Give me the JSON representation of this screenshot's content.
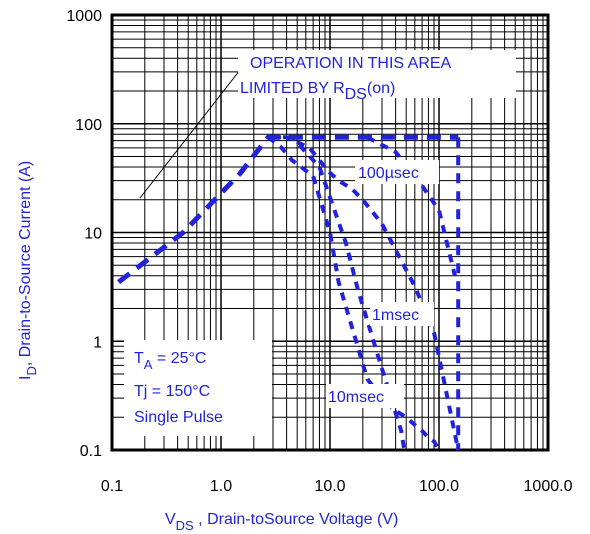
{
  "chart_data": {
    "type": "line",
    "title": "",
    "xlabel": {
      "main": "V",
      "sub": "DS",
      "rest": " , Drain-toSource Voltage (V)"
    },
    "ylabel": {
      "main": "I",
      "sub": "D",
      "rest": ",  Drain-to-Source Current (A)"
    },
    "xscale": "log",
    "yscale": "log",
    "xlim": [
      0.1,
      1000
    ],
    "ylim": [
      0.1,
      1000
    ],
    "grid": true,
    "x_ticks": [
      0.1,
      1,
      10,
      100,
      1000
    ],
    "x_tick_labels": [
      "0.1",
      "1.0",
      "10.0",
      "100.0",
      "1000.0"
    ],
    "y_ticks": [
      0.1,
      1,
      10,
      100,
      1000
    ],
    "y_tick_labels": [
      "0.1",
      "1",
      "10",
      "100",
      "1000"
    ],
    "series": [
      {
        "name": "",
        "x": [
          0.115,
          0.45,
          1.5,
          2.7,
          150
        ],
        "y": [
          3.5,
          10,
          35,
          75,
          75
        ]
      },
      {
        "name": "",
        "x": [
          150,
          150
        ],
        "y": [
          75,
          0.1
        ]
      },
      {
        "name": "",
        "x": [
          2.7,
          4.0,
          6.5,
          9.5,
          12,
          16,
          20,
          30,
          60,
          90,
          150
        ],
        "y": [
          75,
          75,
          60,
          37,
          30,
          25,
          20,
          12,
          3.2,
          1.2,
          0.1
        ]
      },
      {
        "name": "",
        "x": [
          3,
          4.5,
          8,
          14,
          18,
          28,
          45,
          48
        ],
        "y": [
          75,
          75,
          40,
          8,
          3,
          0.7,
          0.15,
          0.1
        ]
      },
      {
        "name": "",
        "x": [
          2.7,
          3.5,
          4.5,
          7,
          10,
          12,
          22,
          30,
          40,
          50,
          60,
          70,
          80,
          90,
          100
        ],
        "y": [
          75,
          62,
          46,
          33,
          10,
          3.5,
          0.45,
          0.3,
          0.23,
          0.2,
          0.17,
          0.15,
          0.13,
          0.12,
          0.1
        ]
      },
      {
        "name": "",
        "x": [
          22,
          40,
          65,
          100,
          140
        ],
        "y": [
          75,
          55,
          30,
          16,
          4
        ]
      }
    ],
    "annotations": {
      "operation_line1": "OPERATION IN THIS AREA",
      "operation_line2_main": "LIMITED BY R",
      "operation_line2_sub": "DS",
      "operation_line2_tail": "(on)",
      "label_100us": "100µsec",
      "label_1ms": "1msec",
      "label_10ms": "10msec",
      "info_ta_main": "T",
      "info_ta_sub": "A",
      "info_ta_rest": " = 25°C",
      "info_tj": "Tj = 150°C",
      "info_pulse": "Single Pulse"
    }
  },
  "colors": {
    "curve": "#2222dd",
    "grid": "#000000",
    "text_blue": "#2222dd"
  }
}
